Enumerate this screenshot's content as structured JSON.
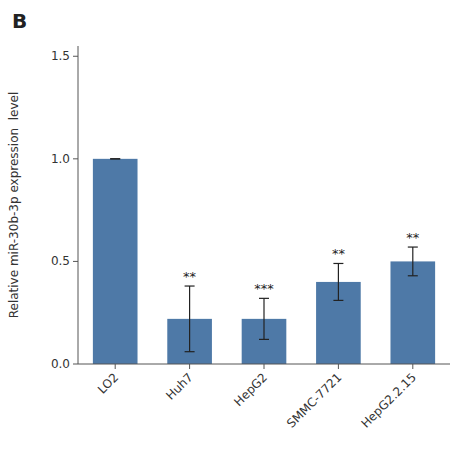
{
  "chart_data": {
    "type": "bar",
    "title": "B",
    "categories": [
      "LO2",
      "Huh7",
      "HepG2",
      "SMMC-7721",
      "HepG2.2.15"
    ],
    "values": [
      1.0,
      0.22,
      0.22,
      0.4,
      0.5
    ],
    "errors": [
      0.0,
      0.16,
      0.1,
      0.09,
      0.07
    ],
    "annotations": [
      null,
      "**",
      "***",
      "**",
      "**"
    ],
    "y_label": "Relative miR-30b-3p expression  level",
    "ylim": [
      0.0,
      1.55
    ],
    "yticks": [
      {
        "value": 0.0,
        "label": "0.0"
      },
      0.5,
      {
        "value": 1.0,
        "label": "1.0"
      },
      1.5
    ],
    "color": "#4e79a7",
    "grid": false
  }
}
